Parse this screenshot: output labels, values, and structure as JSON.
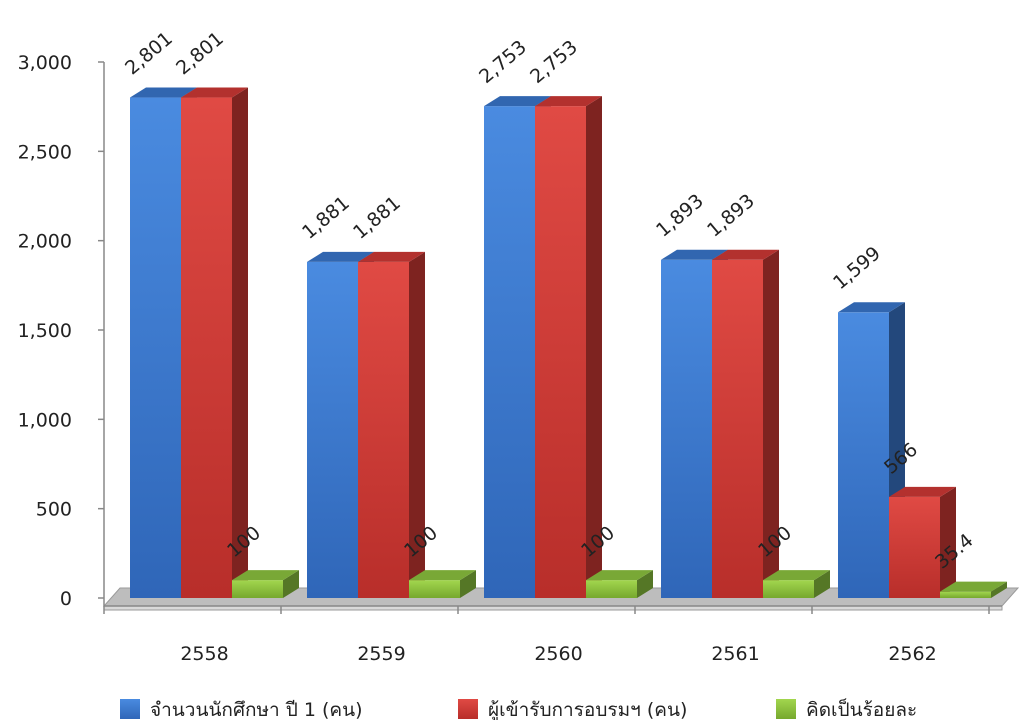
{
  "chart_data": {
    "type": "bar",
    "categories": [
      "2558",
      "2559",
      "2560",
      "2561",
      "2562"
    ],
    "series": [
      {
        "name": "จำนวนนักศึกษา ปี 1 (คน)",
        "values": [
          2801,
          1881,
          2753,
          1893,
          1599
        ],
        "labels": [
          "2,801",
          "1,881",
          "2,753",
          "1,893",
          "1,599"
        ],
        "color": "#3a78cf"
      },
      {
        "name": "ผู้เข้ารับการอบรมฯ (คน)",
        "values": [
          2801,
          1881,
          2753,
          1893,
          566
        ],
        "labels": [
          "2,801",
          "1,881",
          "2,753",
          "1,893",
          "566"
        ],
        "color": "#d23a36"
      },
      {
        "name": "คิดเป็นร้อยละ",
        "values": [
          100,
          100,
          100,
          100,
          35.4
        ],
        "labels": [
          "100",
          "100",
          "100",
          "100",
          "35.4"
        ],
        "color": "#8ec63f"
      }
    ],
    "yticks": [
      "0",
      "500",
      "1,000",
      "1,500",
      "2,000",
      "2,500",
      "3,000"
    ],
    "ylim": [
      0,
      3000
    ],
    "legend_position": "bottom",
    "grid": false,
    "style": "3d-column"
  }
}
